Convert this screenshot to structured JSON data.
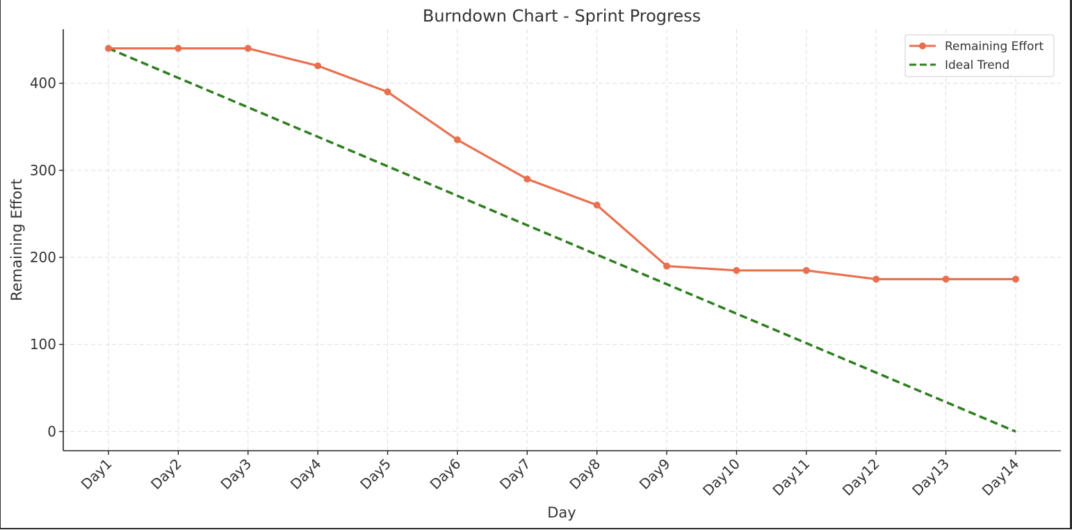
{
  "chart_data": {
    "type": "line",
    "title": "Burndown Chart - Sprint Progress",
    "xlabel": "Day",
    "ylabel": "Remaining Effort",
    "categories": [
      "Day1",
      "Day2",
      "Day3",
      "Day4",
      "Day5",
      "Day6",
      "Day7",
      "Day8",
      "Day9",
      "Day10",
      "Day11",
      "Day12",
      "Day13",
      "Day14"
    ],
    "yticks": [
      0,
      100,
      200,
      300,
      400
    ],
    "ylim": [
      -22,
      462
    ],
    "grid": true,
    "legend_position": "top-right",
    "series": [
      {
        "name": "Remaining Effort",
        "style": "solid-with-markers",
        "color": "#e8704f",
        "values": [
          440,
          440,
          440,
          420,
          390,
          335,
          290,
          260,
          190,
          185,
          185,
          175,
          175,
          175
        ]
      },
      {
        "name": "Ideal Trend",
        "style": "dashed",
        "color": "#2e7d1f",
        "values": [
          440,
          406.15,
          372.31,
          338.46,
          304.62,
          270.77,
          236.92,
          203.08,
          169.23,
          135.38,
          101.54,
          67.69,
          33.85,
          0
        ]
      }
    ]
  }
}
